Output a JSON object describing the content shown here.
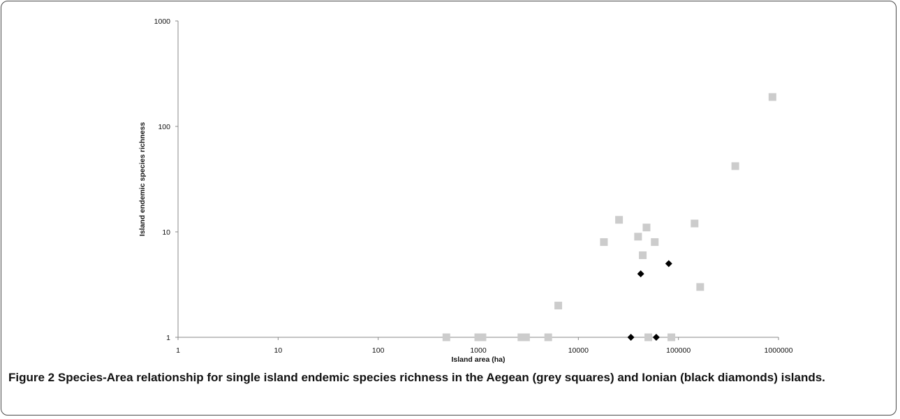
{
  "figure": {
    "label": "Figure 2",
    "caption": "Species-Area relationship for single island endemic species richness in the Aegean (grey squares) and Ionian (black diamonds) islands."
  },
  "chart_data": {
    "type": "scatter",
    "xlabel": "Island area (ha)",
    "ylabel": "Island endemic species richness",
    "x_scale": "log",
    "y_scale": "log",
    "xlim": [
      1,
      1000000
    ],
    "ylim": [
      1,
      1000
    ],
    "x_ticks": [
      "1",
      "10",
      "100",
      "1000",
      "10000",
      "100000",
      "1000000"
    ],
    "y_ticks": [
      "1",
      "10",
      "100",
      "1000"
    ],
    "grid": false,
    "series": [
      {
        "marker": "square",
        "color": "#cccccc",
        "points": [
          [
            480,
            1
          ],
          [
            1000,
            1
          ],
          [
            1100,
            1
          ],
          [
            2700,
            1
          ],
          [
            3000,
            1
          ],
          [
            5000,
            1
          ],
          [
            6300,
            2
          ],
          [
            18000,
            8
          ],
          [
            25500,
            13
          ],
          [
            39500,
            9
          ],
          [
            44000,
            6
          ],
          [
            48000,
            11
          ],
          [
            50000,
            1
          ],
          [
            58000,
            8
          ],
          [
            85000,
            1
          ],
          [
            145000,
            12
          ],
          [
            165000,
            3
          ],
          [
            370000,
            42
          ],
          [
            870000,
            190
          ]
        ]
      },
      {
        "marker": "diamond",
        "color": "#000000",
        "points": [
          [
            33500,
            1
          ],
          [
            42000,
            4
          ],
          [
            60000,
            1
          ],
          [
            80000,
            5
          ]
        ]
      }
    ]
  }
}
